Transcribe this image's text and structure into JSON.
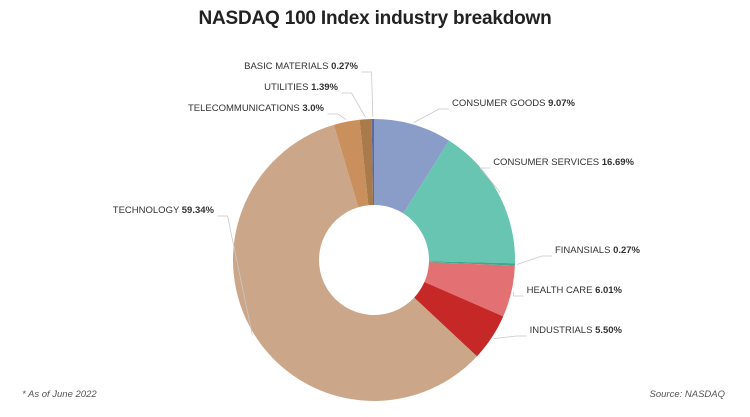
{
  "chart_data": {
    "type": "pie",
    "title": "NASDAQ 100 Index industry breakdown",
    "footnote": "* As of June 2022",
    "source": "Source: NASDAQ",
    "slices": [
      {
        "label": "CONSUMER GOODS",
        "value": 9.07,
        "value_label": "9.07%",
        "color": "#8a9cc8"
      },
      {
        "label": "CONSUMER SERVICES",
        "value": 16.69,
        "value_label": "16.69%",
        "color": "#67c5b2"
      },
      {
        "label": "FINANSIALS",
        "value": 0.27,
        "value_label": "0.27%",
        "color": "#3aaa8e"
      },
      {
        "label": "HEALTH CARE",
        "value": 6.01,
        "value_label": "6.01%",
        "color": "#e37173"
      },
      {
        "label": "INDUSTRIALS",
        "value": 5.5,
        "value_label": "5.50%",
        "color": "#c62727"
      },
      {
        "label": "TECHNOLOGY",
        "value": 59.34,
        "value_label": "59.34%",
        "color": "#cba688"
      },
      {
        "label": "TELECOMMUNICATIONS",
        "value": 3.0,
        "value_label": "3.0%",
        "color": "#c98f5c"
      },
      {
        "label": "UTILITIES",
        "value": 1.39,
        "value_label": "1.39%",
        "color": "#a97a4a"
      },
      {
        "label": "BASIC MATERIALS",
        "value": 0.27,
        "value_label": "0.27%",
        "color": "#5e6a9c"
      }
    ]
  }
}
